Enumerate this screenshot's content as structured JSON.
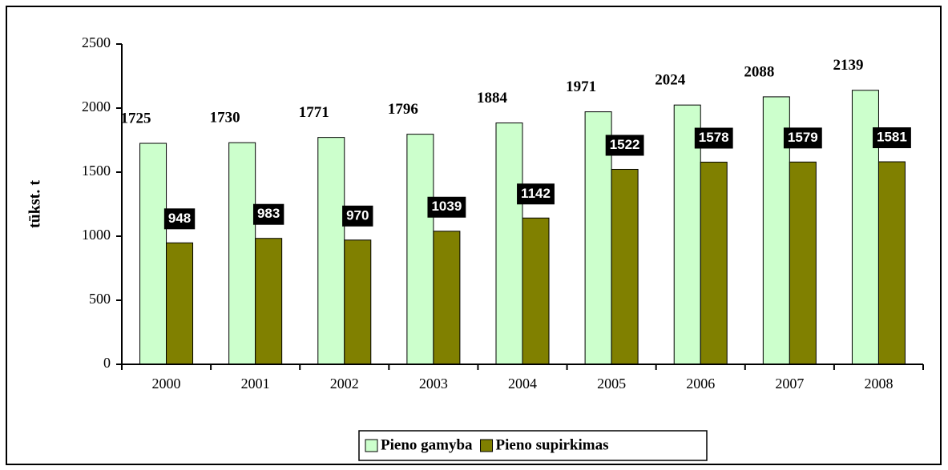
{
  "chart_data": {
    "type": "bar",
    "categories": [
      "2000",
      "2001",
      "2002",
      "2003",
      "2004",
      "2005",
      "2006",
      "2007",
      "2008"
    ],
    "series": [
      {
        "name": "Pieno gamyba",
        "color": "#ccffcc",
        "values": [
          1725,
          1730,
          1771,
          1796,
          1884,
          1971,
          2024,
          2088,
          2139
        ]
      },
      {
        "name": "Pieno supirkimas",
        "color": "#808000",
        "values": [
          948,
          983,
          970,
          1039,
          1142,
          1522,
          1578,
          1579,
          1581
        ]
      }
    ],
    "y_label": "tūkst. t",
    "ylim": [
      0,
      2500
    ],
    "yticks": [
      0,
      500,
      1000,
      1500,
      2000,
      2500
    ],
    "legend": "bottom"
  }
}
